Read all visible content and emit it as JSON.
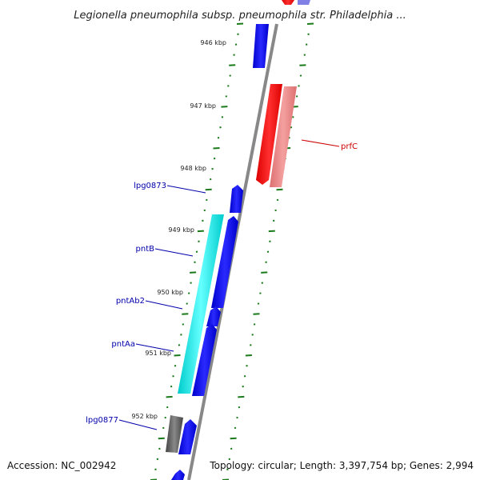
{
  "title": "Legionella pneumophila subsp. pneumophila str. Philadelphia ...",
  "accession": "Accession: NC_002942",
  "summary": "Topology: circular; Length: 3,397,754 bp; Genes: 2,994",
  "colors": {
    "backbone": "#888888",
    "tick": "#1a7a1a",
    "forward_gene": "#0000ee",
    "rrna_or_other": "#ff0000",
    "rrna_light": "#f08080",
    "cds_cyan": "#00e5e5",
    "pseudogene": "#666666",
    "label_blue": "#0000aa",
    "label_red": "#cc0000"
  },
  "ticks": [
    "946 kbp",
    "947 kbp",
    "948 kbp",
    "949 kbp",
    "950 kbp",
    "951 kbp",
    "952 kbp"
  ],
  "labels": [
    {
      "name": "lpg0873",
      "color": "blue"
    },
    {
      "name": "pntB",
      "color": "blue"
    },
    {
      "name": "pntAb2",
      "color": "blue"
    },
    {
      "name": "pntAa",
      "color": "blue"
    },
    {
      "name": "lpg0877",
      "color": "blue"
    },
    {
      "name": "prfC",
      "color": "red"
    }
  ]
}
